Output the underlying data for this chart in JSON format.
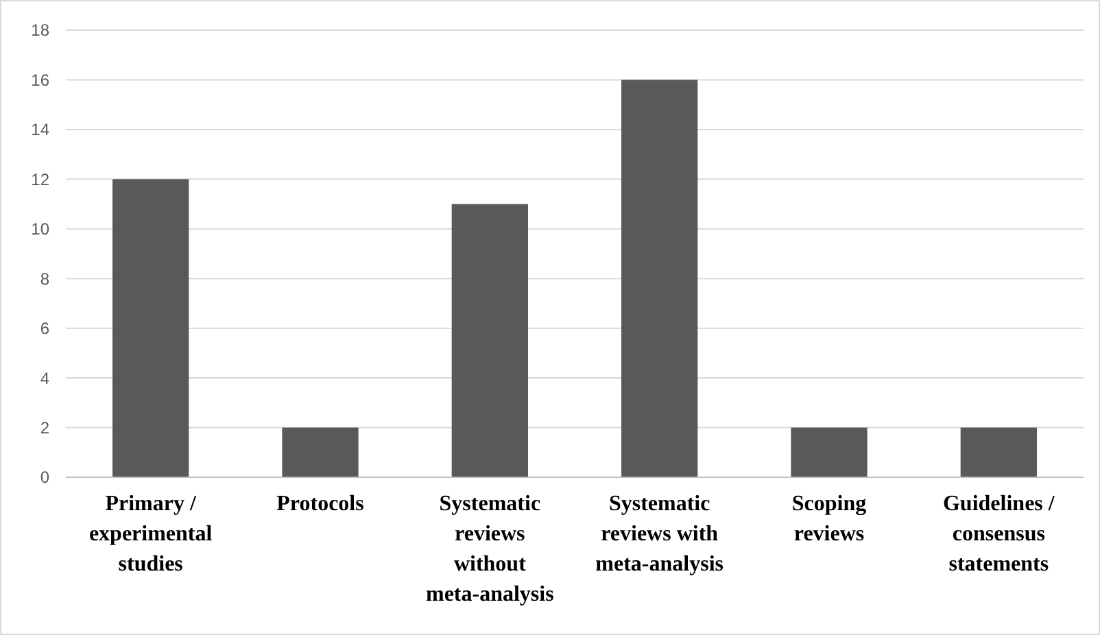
{
  "chart_data": {
    "type": "bar",
    "categories": [
      "Primary /\nexperimental\nstudies",
      "Protocols",
      "Systematic\nreviews\nwithout\nmeta-analysis",
      "Systematic\nreviews with\nmeta-analysis",
      "Scoping\nreviews",
      "Guidelines /\nconsensus\nstatements"
    ],
    "values": [
      12,
      2,
      11,
      16,
      2,
      2
    ],
    "color": "#595959",
    "ylim": [
      0,
      18
    ],
    "yticks": [
      0,
      2,
      4,
      6,
      8,
      10,
      12,
      14,
      16,
      18
    ],
    "grid": "y"
  }
}
